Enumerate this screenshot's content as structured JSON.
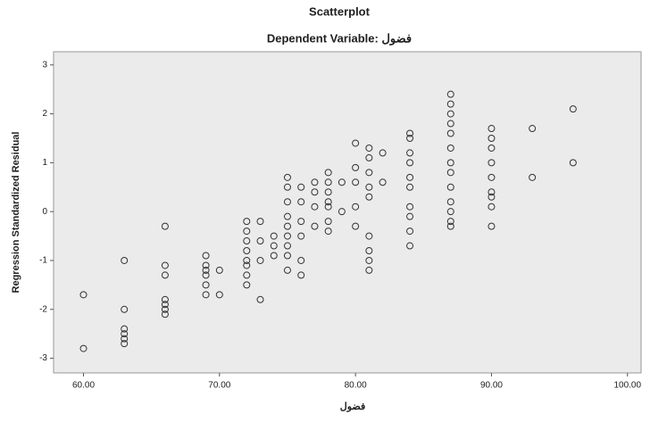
{
  "chart_data": {
    "type": "scatter",
    "title": "Scatterplot",
    "subtitle": "Dependent Variable: فضول",
    "x_label": "فضول",
    "y_label": "Regression Standardized Residual",
    "x": [
      60,
      60,
      63,
      63,
      63,
      63,
      63,
      63,
      66,
      66,
      66,
      66,
      66,
      66,
      66,
      69,
      69,
      69,
      69,
      69,
      69,
      70,
      70,
      72,
      72,
      72,
      72,
      72,
      72,
      72,
      72,
      73,
      73,
      73,
      73,
      74,
      74,
      74,
      75,
      75,
      75,
      75,
      75,
      75,
      75,
      75,
      75,
      76,
      76,
      76,
      76,
      76,
      76,
      77,
      77,
      77,
      77,
      78,
      78,
      78,
      78,
      78,
      78,
      78,
      79,
      79,
      80,
      80,
      80,
      80,
      80,
      81,
      81,
      81,
      81,
      81,
      81,
      81,
      81,
      81,
      82,
      82,
      84,
      84,
      84,
      84,
      84,
      84,
      84,
      84,
      84,
      84,
      87,
      87,
      87,
      87,
      87,
      87,
      87,
      87,
      87,
      87,
      87,
      87,
      87,
      90,
      90,
      90,
      90,
      90,
      90,
      90,
      90,
      90,
      93,
      93,
      96,
      96
    ],
    "values": [
      -1.7,
      -2.8,
      -1.0,
      -2.0,
      -2.4,
      -2.5,
      -2.6,
      -2.7,
      -0.3,
      -1.1,
      -1.3,
      -1.8,
      -1.9,
      -2.0,
      -2.1,
      -0.9,
      -1.1,
      -1.2,
      -1.3,
      -1.5,
      -1.7,
      -1.2,
      -1.7,
      -0.2,
      -0.4,
      -0.6,
      -0.8,
      -1.0,
      -1.1,
      -1.3,
      -1.5,
      -0.2,
      -0.6,
      -1.0,
      -1.8,
      -0.5,
      -0.7,
      -0.9,
      0.7,
      0.5,
      0.2,
      -0.1,
      -0.3,
      -0.5,
      -0.7,
      -0.9,
      -1.2,
      0.5,
      0.2,
      -0.2,
      -0.5,
      -1.0,
      -1.3,
      0.6,
      0.4,
      0.1,
      -0.3,
      0.8,
      0.6,
      0.4,
      0.2,
      0.1,
      -0.2,
      -0.4,
      0.6,
      0.0,
      1.4,
      0.9,
      0.6,
      0.1,
      -0.3,
      1.3,
      1.1,
      0.8,
      0.5,
      0.3,
      -0.5,
      -0.8,
      -1.0,
      -1.2,
      1.2,
      0.6,
      1.6,
      1.5,
      1.2,
      1.0,
      0.7,
      0.5,
      0.1,
      -0.1,
      -0.4,
      -0.7,
      2.4,
      2.2,
      2.0,
      1.8,
      1.6,
      1.3,
      1.0,
      0.8,
      0.5,
      0.2,
      0.0,
      -0.2,
      -0.3,
      1.7,
      1.5,
      1.3,
      1.0,
      0.7,
      0.4,
      0.3,
      0.1,
      -0.3,
      1.7,
      0.7,
      2.1,
      1.0
    ],
    "color": "#333333",
    "background": "#ebebeb",
    "xlim": [
      57.8,
      101
    ],
    "ylim": [
      -3.3,
      3.27
    ],
    "xticks": [
      {
        "value": 60,
        "label": "60.00"
      },
      {
        "value": 70,
        "label": "70.00"
      },
      {
        "value": 80,
        "label": "80.00"
      },
      {
        "value": 90,
        "label": "90.00"
      },
      {
        "value": 100,
        "label": "100.00"
      }
    ],
    "yticks": [
      3,
      2,
      1,
      0,
      -1,
      -2,
      -3
    ]
  }
}
